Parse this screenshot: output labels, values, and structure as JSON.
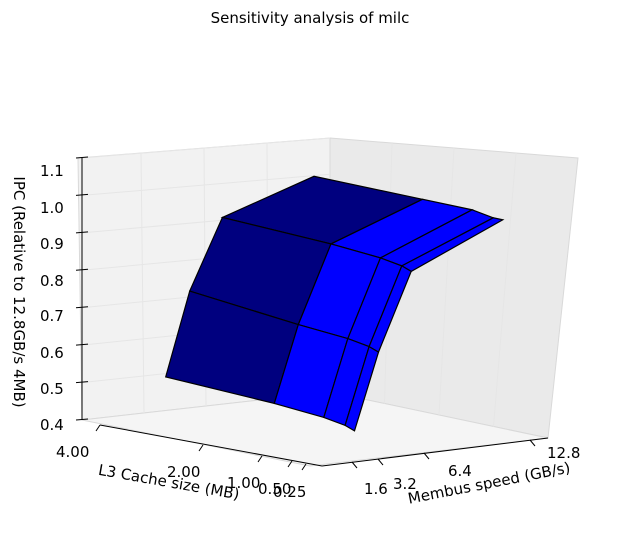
{
  "chart_data": {
    "type": "surface3d",
    "title": "Sensitivity analysis of milc",
    "xlabel": "Membus speed (GB/s)",
    "ylabel": "L3 Cache size (MB)",
    "zlabel": "IPC (Relative to 12.8GB/s 4MB)",
    "membus_ticks": [
      "1.6",
      "3.2",
      "6.4",
      "12.8"
    ],
    "cache_ticks": [
      "4.00",
      "2.00",
      "1.00",
      "0.50",
      "0.25"
    ],
    "ipc_ticks": [
      "0.4",
      "0.5",
      "0.6",
      "0.7",
      "0.8",
      "0.9",
      "1.0",
      "1.1"
    ],
    "zlim": [
      0.4,
      1.1
    ],
    "membus_values": [
      1.6,
      3.2,
      6.4,
      12.8
    ],
    "cache_values": [
      4.0,
      2.0,
      1.0,
      0.5,
      0.25
    ],
    "ipc_grid": [
      [
        0.52,
        0.75,
        0.94,
        1.0
      ],
      [
        0.51,
        0.72,
        0.93,
        1.0
      ],
      [
        0.5,
        0.71,
        0.92,
        1.0
      ],
      [
        0.49,
        0.7,
        0.91,
        0.99
      ],
      [
        0.48,
        0.69,
        0.9,
        0.99
      ]
    ],
    "colors": {
      "dark_face": "#00007f",
      "light_face": "#0000ff",
      "edge": "#000000",
      "pane": "#f2f2f2",
      "grid": "#e6e6e6"
    },
    "grid": true
  }
}
